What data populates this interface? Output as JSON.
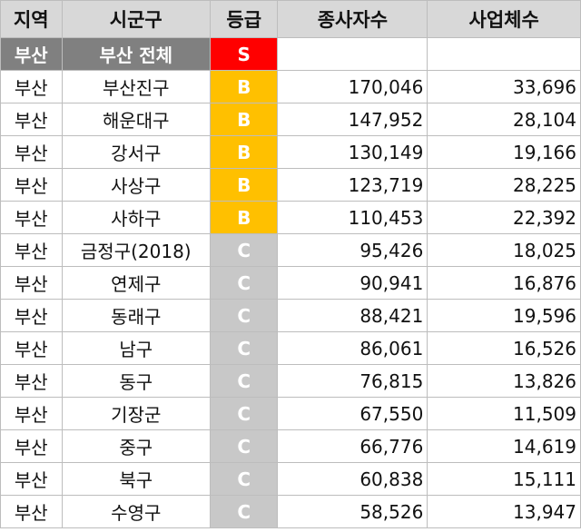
{
  "headers": {
    "region": "지역",
    "district": "시군구",
    "grade": "등급",
    "employees": "종사자수",
    "businesses": "사업체수"
  },
  "grade_colors": {
    "S": "#ff0000",
    "B": "#ffc000",
    "C": "#c8c8c8"
  },
  "rows": [
    {
      "region": "부산",
      "district": "부산 전체",
      "grade": "S",
      "employees": "",
      "businesses": "",
      "total": true
    },
    {
      "region": "부산",
      "district": "부산진구",
      "grade": "B",
      "employees": "170,046",
      "businesses": "33,696"
    },
    {
      "region": "부산",
      "district": "해운대구",
      "grade": "B",
      "employees": "147,952",
      "businesses": "28,104"
    },
    {
      "region": "부산",
      "district": "강서구",
      "grade": "B",
      "employees": "130,149",
      "businesses": "19,166"
    },
    {
      "region": "부산",
      "district": "사상구",
      "grade": "B",
      "employees": "123,719",
      "businesses": "28,225"
    },
    {
      "region": "부산",
      "district": "사하구",
      "grade": "B",
      "employees": "110,453",
      "businesses": "22,392"
    },
    {
      "region": "부산",
      "district": "금정구(2018)",
      "grade": "C",
      "employees": "95,426",
      "businesses": "18,025"
    },
    {
      "region": "부산",
      "district": "연제구",
      "grade": "C",
      "employees": "90,941",
      "businesses": "16,876"
    },
    {
      "region": "부산",
      "district": "동래구",
      "grade": "C",
      "employees": "88,421",
      "businesses": "19,596"
    },
    {
      "region": "부산",
      "district": "남구",
      "grade": "C",
      "employees": "86,061",
      "businesses": "16,526"
    },
    {
      "region": "부산",
      "district": "동구",
      "grade": "C",
      "employees": "76,815",
      "businesses": "13,826"
    },
    {
      "region": "부산",
      "district": "기장군",
      "grade": "C",
      "employees": "67,550",
      "businesses": "11,509"
    },
    {
      "region": "부산",
      "district": "중구",
      "grade": "C",
      "employees": "66,776",
      "businesses": "14,619"
    },
    {
      "region": "부산",
      "district": "북구",
      "grade": "C",
      "employees": "60,838",
      "businesses": "15,111"
    },
    {
      "region": "부산",
      "district": "수영구",
      "grade": "C",
      "employees": "58,526",
      "businesses": "13,947"
    }
  ]
}
